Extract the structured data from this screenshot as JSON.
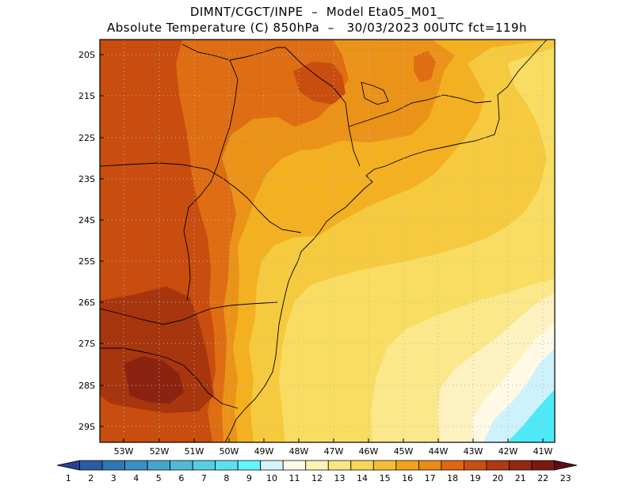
{
  "header": {
    "line1": "DIMNT/CGCT/INPE  –  Model Eta05_M01_",
    "line2": "Absolute Temperature (C) 850hPa  –   30/03/2023 00UTC fct=119h"
  },
  "map": {
    "lat_labels": [
      "20S",
      "21S",
      "22S",
      "23S",
      "24S",
      "25S",
      "26S",
      "27S",
      "28S",
      "29S"
    ],
    "lon_labels": [
      "53W",
      "52W",
      "51W",
      "50W",
      "49W",
      "48W",
      "47W",
      "46W",
      "45W",
      "44W",
      "43W",
      "42W",
      "41W"
    ],
    "colors": {
      "c19": "#c84d0e",
      "c18": "#de6d13",
      "c17": "#eb9318",
      "c16": "#f3b021",
      "c15": "#f6ca3f",
      "c14": "#f8dd62",
      "c13": "#fae88a",
      "c12": "#fdf2c0",
      "c11": "#fff9e6",
      "c10": "#cdf2fb",
      "c9": "#4ee9f6",
      "c20": "#a7350e",
      "c21": "#8b2310"
    }
  },
  "colorbar": {
    "labels": [
      "1",
      "2",
      "3",
      "4",
      "5",
      "6",
      "7",
      "8",
      "9",
      "10",
      "11",
      "12",
      "13",
      "14",
      "15",
      "16",
      "17",
      "18",
      "19",
      "20",
      "21",
      "22",
      "23"
    ],
    "colors": [
      "#26418f",
      "#2a5ca3",
      "#2e77b6",
      "#3890c4",
      "#45a6cc",
      "#50bad6",
      "#57cde0",
      "#5cdfee",
      "#63f4ff",
      "#d2f5fc",
      "#fffbe8",
      "#fff2b6",
      "#fbe683",
      "#f8d65a",
      "#f5bf35",
      "#f1a31c",
      "#ec8a17",
      "#df6713",
      "#c94f10",
      "#ad3a10",
      "#93280f",
      "#7a1a12",
      "#5b0e12"
    ]
  }
}
